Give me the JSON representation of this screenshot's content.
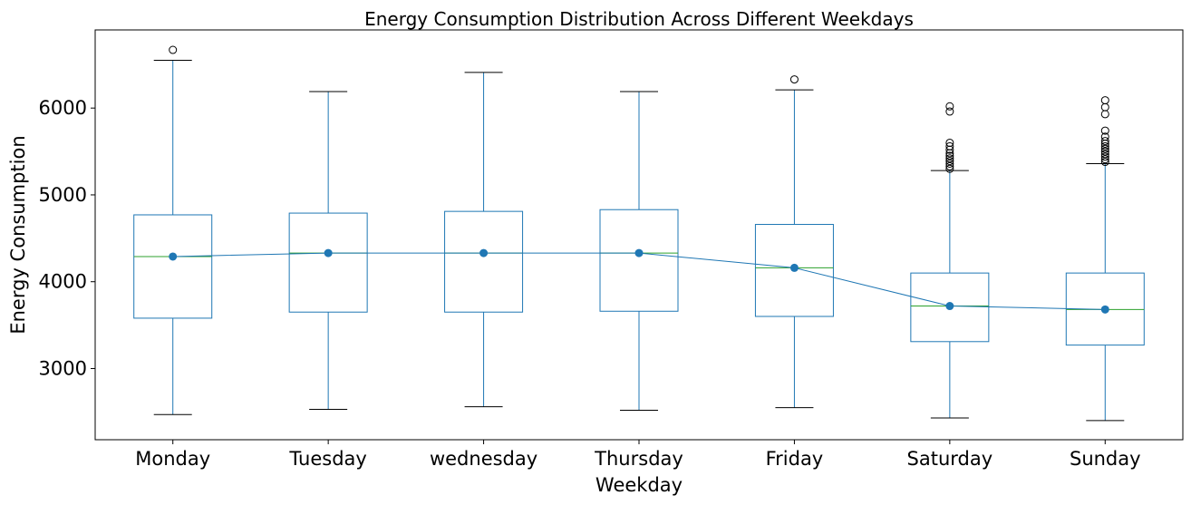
{
  "chart_data": {
    "type": "box",
    "title": "Energy Consumption Distribution Across Different Weekdays",
    "xlabel": "Weekday",
    "ylabel": "Energy Consumption",
    "categories": [
      "Monday",
      "Tuesday",
      "wednesday",
      "Thursday",
      "Friday",
      "Saturday",
      "Sunday"
    ],
    "ylim": [
      2180,
      6900
    ],
    "yticks": [
      3000,
      4000,
      5000,
      6000
    ],
    "grid": false,
    "boxes": [
      {
        "whisker_low": 2470,
        "q1": 3580,
        "median": 4290,
        "q3": 4770,
        "whisker_high": 6550,
        "mean": 4290,
        "outliers": [
          6670
        ]
      },
      {
        "whisker_low": 2530,
        "q1": 3650,
        "median": 4330,
        "q3": 4790,
        "whisker_high": 6190,
        "mean": 4330,
        "outliers": []
      },
      {
        "whisker_low": 2560,
        "q1": 3650,
        "median": 4330,
        "q3": 4810,
        "whisker_high": 6410,
        "mean": 4330,
        "outliers": []
      },
      {
        "whisker_low": 2520,
        "q1": 3660,
        "median": 4330,
        "q3": 4830,
        "whisker_high": 6190,
        "mean": 4330,
        "outliers": []
      },
      {
        "whisker_low": 2550,
        "q1": 3600,
        "median": 4160,
        "q3": 4660,
        "whisker_high": 6210,
        "mean": 4160,
        "outliers": [
          6330
        ]
      },
      {
        "whisker_low": 2430,
        "q1": 3310,
        "median": 3720,
        "q3": 4100,
        "whisker_high": 5280,
        "mean": 3720,
        "outliers": [
          5300,
          5330,
          5360,
          5390,
          5420,
          5450,
          5480,
          5520,
          5560,
          5600,
          5960,
          6020
        ]
      },
      {
        "whisker_low": 2400,
        "q1": 3270,
        "median": 3680,
        "q3": 4100,
        "whisker_high": 5360,
        "mean": 3680,
        "outliers": [
          5380,
          5410,
          5440,
          5470,
          5500,
          5530,
          5560,
          5590,
          5620,
          5670,
          5740,
          5930,
          6010,
          6090
        ]
      }
    ],
    "colors": {
      "box": "#1f77b4",
      "median": "#2ca02c",
      "mean_line": "#1f77b4",
      "whisker_cap": "#000000",
      "outlier_edge": "#000000"
    }
  }
}
